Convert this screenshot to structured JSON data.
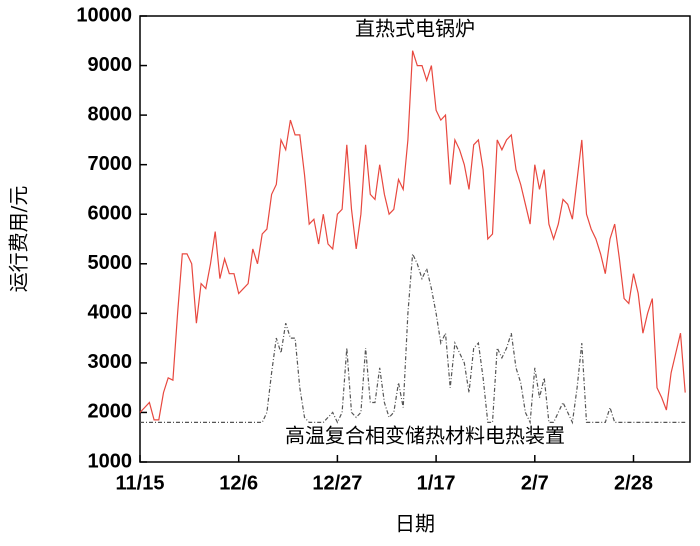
{
  "chart_data": {
    "type": "line",
    "xlabel": "日期",
    "ylabel": "运行费用/元",
    "categories": [
      "11/15",
      null,
      null,
      null,
      null,
      null,
      null,
      null,
      null,
      null,
      null,
      null,
      null,
      null,
      null,
      null,
      null,
      null,
      null,
      null,
      null,
      "12/6",
      null,
      null,
      null,
      null,
      null,
      null,
      null,
      null,
      null,
      null,
      null,
      null,
      null,
      null,
      null,
      null,
      null,
      null,
      null,
      null,
      "12/27",
      null,
      null,
      null,
      null,
      null,
      null,
      null,
      null,
      null,
      null,
      null,
      null,
      null,
      null,
      null,
      null,
      null,
      null,
      null,
      null,
      "1/17",
      null,
      null,
      null,
      null,
      null,
      null,
      null,
      null,
      null,
      null,
      null,
      null,
      null,
      null,
      null,
      null,
      null,
      null,
      null,
      null,
      "2/7",
      null,
      null,
      null,
      null,
      null,
      null,
      null,
      null,
      null,
      null,
      null,
      null,
      null,
      null,
      null,
      null,
      null,
      null,
      null,
      null,
      "2/28",
      null,
      null,
      null,
      null,
      null,
      null,
      null,
      null,
      null,
      null,
      null
    ],
    "series": [
      {
        "name": "直热式电锅炉",
        "color": "#e8483f",
        "dash": false,
        "values": [
          2000,
          2100,
          2200,
          1850,
          1850,
          2400,
          2700,
          2650,
          4000,
          5200,
          5200,
          5000,
          3800,
          4600,
          4500,
          5000,
          5650,
          4700,
          5100,
          4800,
          4800,
          4400,
          4500,
          4600,
          5300,
          5000,
          5600,
          5700,
          6400,
          6600,
          7500,
          7300,
          7900,
          7600,
          7600,
          6800,
          5800,
          5900,
          5400,
          6000,
          5400,
          5300,
          6000,
          6100,
          7400,
          6100,
          5300,
          6000,
          7400,
          6400,
          6300,
          7000,
          6400,
          6000,
          6100,
          6700,
          6500,
          7500,
          9300,
          9000,
          9000,
          8700,
          9000,
          8100,
          7900,
          8000,
          6600,
          7500,
          7300,
          7000,
          6500,
          7400,
          7500,
          6900,
          5500,
          5600,
          7500,
          7300,
          7500,
          7600,
          6900,
          6600,
          6200,
          5800,
          7000,
          6500,
          6900,
          5800,
          5500,
          5800,
          6300,
          6200,
          5900,
          6700,
          7500,
          6000,
          5700,
          5500,
          5200,
          4800,
          5500,
          5800,
          5100,
          4300,
          4200,
          4800,
          4400,
          3600,
          4000,
          4300,
          2500,
          2300,
          2050,
          2800,
          3200,
          3600,
          2400
        ]
      },
      {
        "name": "高温复合相变储热材料电热装置",
        "color": "#555555",
        "dash": true,
        "values": [
          1800,
          1800,
          1800,
          1800,
          1800,
          1800,
          1800,
          1800,
          1800,
          1800,
          1800,
          1800,
          1800,
          1800,
          1800,
          1800,
          1800,
          1800,
          1800,
          1800,
          1800,
          1800,
          1800,
          1800,
          1800,
          1800,
          1800,
          2000,
          2800,
          3500,
          3200,
          3800,
          3500,
          3500,
          2500,
          1900,
          1800,
          1800,
          1800,
          1800,
          1900,
          2000,
          1800,
          2000,
          3300,
          2000,
          1900,
          2000,
          3300,
          2200,
          2200,
          2900,
          2200,
          1900,
          2000,
          2600,
          2100,
          4000,
          5200,
          5000,
          4700,
          4900,
          4500,
          4000,
          3400,
          3600,
          2500,
          3400,
          3200,
          3000,
          2400,
          3300,
          3400,
          2700,
          1800,
          1800,
          3300,
          3100,
          3300,
          3600,
          2900,
          2600,
          2000,
          1800,
          2900,
          2300,
          2700,
          1800,
          1800,
          2000,
          2200,
          2000,
          1800,
          2500,
          3400,
          1800,
          1800,
          1800,
          1800,
          1800,
          2100,
          1800,
          1800,
          1800,
          1800,
          1800,
          1800,
          1800,
          1800,
          1800,
          1800,
          1800,
          1800,
          1800,
          1800,
          1800,
          1800
        ]
      }
    ],
    "ylim": [
      1000,
      10000
    ],
    "yticks": [
      1000,
      2000,
      3000,
      4000,
      5000,
      6000,
      7000,
      8000,
      9000,
      10000
    ]
  }
}
